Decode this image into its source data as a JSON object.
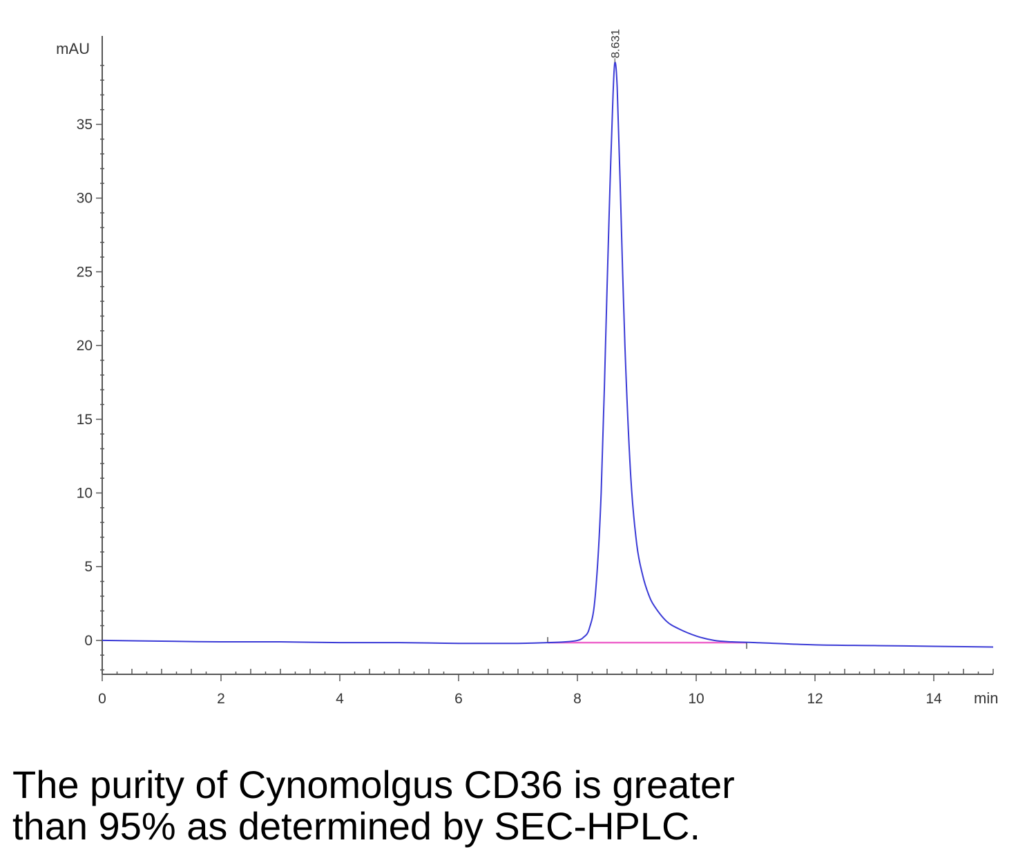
{
  "chart_data": {
    "type": "line",
    "ylabel": "mAU",
    "xlabel": "min",
    "xlim": [
      0,
      15
    ],
    "ylim": [
      -2.3,
      41
    ],
    "x_ticks": [
      "0",
      "2",
      "4",
      "6",
      "8",
      "10",
      "12",
      "14"
    ],
    "y_ticks": [
      "0",
      "5",
      "10",
      "15",
      "20",
      "25",
      "30",
      "35"
    ],
    "peak_label": "8.631",
    "grid": false,
    "series": [
      {
        "color": "#3a3ad6",
        "x": [
          0,
          1,
          2,
          3,
          4,
          5,
          6,
          7,
          7.5,
          7.8,
          8.0,
          8.1,
          8.2,
          8.3,
          8.4,
          8.5,
          8.55,
          8.6,
          8.631,
          8.67,
          8.72,
          8.8,
          8.9,
          9.0,
          9.1,
          9.2,
          9.3,
          9.5,
          9.7,
          10.0,
          10.3,
          10.6,
          11.0,
          12.0,
          13.0,
          14.0,
          15.0
        ],
        "y": [
          0.0,
          -0.05,
          -0.1,
          -0.1,
          -0.15,
          -0.15,
          -0.2,
          -0.2,
          -0.15,
          -0.1,
          0.0,
          0.2,
          0.8,
          3.0,
          10.0,
          24.0,
          31.0,
          37.0,
          39.2,
          37.5,
          31.0,
          20.0,
          11.0,
          6.5,
          4.4,
          3.1,
          2.3,
          1.3,
          0.8,
          0.3,
          0.0,
          -0.1,
          -0.15,
          -0.3,
          -0.35,
          -0.4,
          -0.45
        ]
      }
    ],
    "baseline": {
      "color": "#ee66cc",
      "x": [
        7.5,
        10.85
      ],
      "y": [
        -0.15,
        -0.15
      ]
    }
  },
  "caption": {
    "line1": "The purity of Cynomolgus CD36 is greater",
    "line2": "than 95% as determined by SEC-HPLC."
  }
}
